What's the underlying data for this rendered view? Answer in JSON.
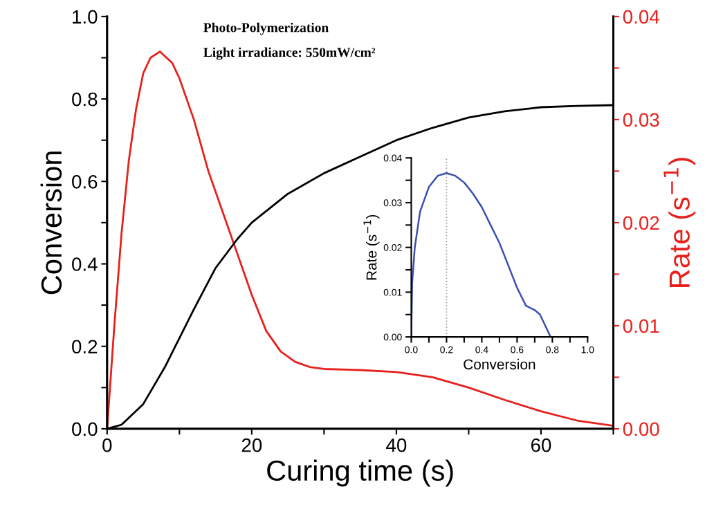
{
  "chart_data": [
    {
      "type": "line",
      "xlabel": "Curing time (s)",
      "ylabel": "Conversion",
      "y2label": "Rate (s$^{−1}$)",
      "annotations": [
        "Photo-Polymerization",
        "Light irradiance: 550mW/cm²"
      ],
      "xlim": [
        0,
        70
      ],
      "xticks": [
        0,
        {
          "value": 10,
          "label": null
        },
        20,
        {
          "value": 30,
          "label": null
        },
        40,
        {
          "value": 50,
          "label": null
        },
        60,
        {
          "value": 70,
          "label": null
        }
      ],
      "ylim": [
        0,
        1.0
      ],
      "yticks": [
        {
          "value": 0,
          "label": "0.0"
        },
        {
          "value": 0.1,
          "label": null
        },
        {
          "value": 0.2,
          "label": "0.2"
        },
        {
          "value": 0.3,
          "label": null
        },
        {
          "value": 0.4,
          "label": "0.4"
        },
        {
          "value": 0.5,
          "label": null
        },
        {
          "value": 0.6,
          "label": "0.6"
        },
        {
          "value": 0.7,
          "label": null
        },
        {
          "value": 0.8,
          "label": "0.8"
        },
        {
          "value": 0.9,
          "label": null
        },
        {
          "value": 1.0,
          "label": "1.0"
        }
      ],
      "y2lim": [
        0,
        0.04
      ],
      "y2ticks": [
        {
          "value": 0,
          "label": "0.00"
        },
        {
          "value": 0.005,
          "label": null
        },
        {
          "value": 0.01,
          "label": "0.01"
        },
        {
          "value": 0.015,
          "label": null
        },
        {
          "value": 0.02,
          "label": "0.02"
        },
        {
          "value": 0.025,
          "label": null
        },
        {
          "value": 0.03,
          "label": "0.03"
        },
        {
          "value": 0.035,
          "label": null
        },
        {
          "value": 0.04,
          "label": "0.04"
        }
      ],
      "grid": false,
      "marker": "none",
      "line_style": "solid",
      "series": [
        {
          "color": "#000000",
          "x": [
            0,
            2,
            5,
            8,
            10,
            12,
            15,
            18,
            20,
            25,
            30,
            35,
            40,
            45,
            50,
            55,
            60,
            65,
            70
          ],
          "values": [
            0,
            0.01,
            0.06,
            0.15,
            0.22,
            0.29,
            0.39,
            0.46,
            0.5,
            0.57,
            0.62,
            0.66,
            0.7,
            0.73,
            0.755,
            0.77,
            0.78,
            0.783,
            0.785
          ]
        },
        {
          "color": "#e8201c",
          "axis": "y2",
          "x": [
            0,
            1,
            2,
            3,
            4,
            5,
            6,
            7.3,
            9,
            10,
            12,
            14,
            16,
            18,
            20,
            22,
            24,
            26,
            28,
            30,
            35,
            40,
            45,
            50,
            55,
            60,
            65,
            70
          ],
          "values": [
            0,
            0.01,
            0.019,
            0.026,
            0.031,
            0.0345,
            0.036,
            0.0366,
            0.0355,
            0.034,
            0.03,
            0.025,
            0.021,
            0.017,
            0.013,
            0.0095,
            0.0075,
            0.0065,
            0.006,
            0.0058,
            0.0057,
            0.0055,
            0.005,
            0.004,
            0.0028,
            0.0017,
            0.0008,
            0.0003
          ]
        }
      ]
    },
    {
      "type": "line",
      "xlabel": "Conversion",
      "ylabel": "Rate (s$^{−1}$)",
      "xlim": [
        0,
        1.0
      ],
      "xticks": [
        {
          "value": 0,
          "label": "0.0"
        },
        {
          "value": 0.1,
          "label": null
        },
        {
          "value": 0.2,
          "label": "0.2"
        },
        {
          "value": 0.3,
          "label": null
        },
        {
          "value": 0.4,
          "label": "0.4"
        },
        {
          "value": 0.5,
          "label": null
        },
        {
          "value": 0.6,
          "label": "0.6"
        },
        {
          "value": 0.7,
          "label": null
        },
        {
          "value": 0.8,
          "label": "0.8"
        },
        {
          "value": 0.9,
          "label": null
        },
        {
          "value": 1.0,
          "label": "1.0"
        }
      ],
      "ylim": [
        0,
        0.04
      ],
      "yticks": [
        {
          "value": 0,
          "label": "0.00"
        },
        {
          "value": 0.005,
          "label": null
        },
        {
          "value": 0.01,
          "label": "0.01"
        },
        {
          "value": 0.015,
          "label": null
        },
        {
          "value": 0.02,
          "label": "0.02"
        },
        {
          "value": 0.025,
          "label": null
        },
        {
          "value": 0.03,
          "label": "0.03"
        },
        {
          "value": 0.035,
          "label": null
        },
        {
          "value": 0.04,
          "label": "0.04"
        }
      ],
      "grid": false,
      "marker": "none",
      "line_style": "solid",
      "ref_lines": [
        {
          "axis": "x",
          "value": 0.2,
          "color": "#999999",
          "line_style": "dotted"
        }
      ],
      "series": [
        {
          "color": "#3a4fb0",
          "x": [
            0,
            0.005,
            0.02,
            0.05,
            0.1,
            0.15,
            0.2,
            0.25,
            0.3,
            0.35,
            0.4,
            0.45,
            0.5,
            0.55,
            0.6,
            0.65,
            0.7,
            0.73,
            0.76,
            0.79
          ],
          "values": [
            0,
            0.012,
            0.02,
            0.028,
            0.0335,
            0.036,
            0.0366,
            0.036,
            0.0345,
            0.032,
            0.029,
            0.025,
            0.021,
            0.016,
            0.011,
            0.007,
            0.006,
            0.005,
            0.0025,
            0
          ]
        }
      ]
    }
  ]
}
